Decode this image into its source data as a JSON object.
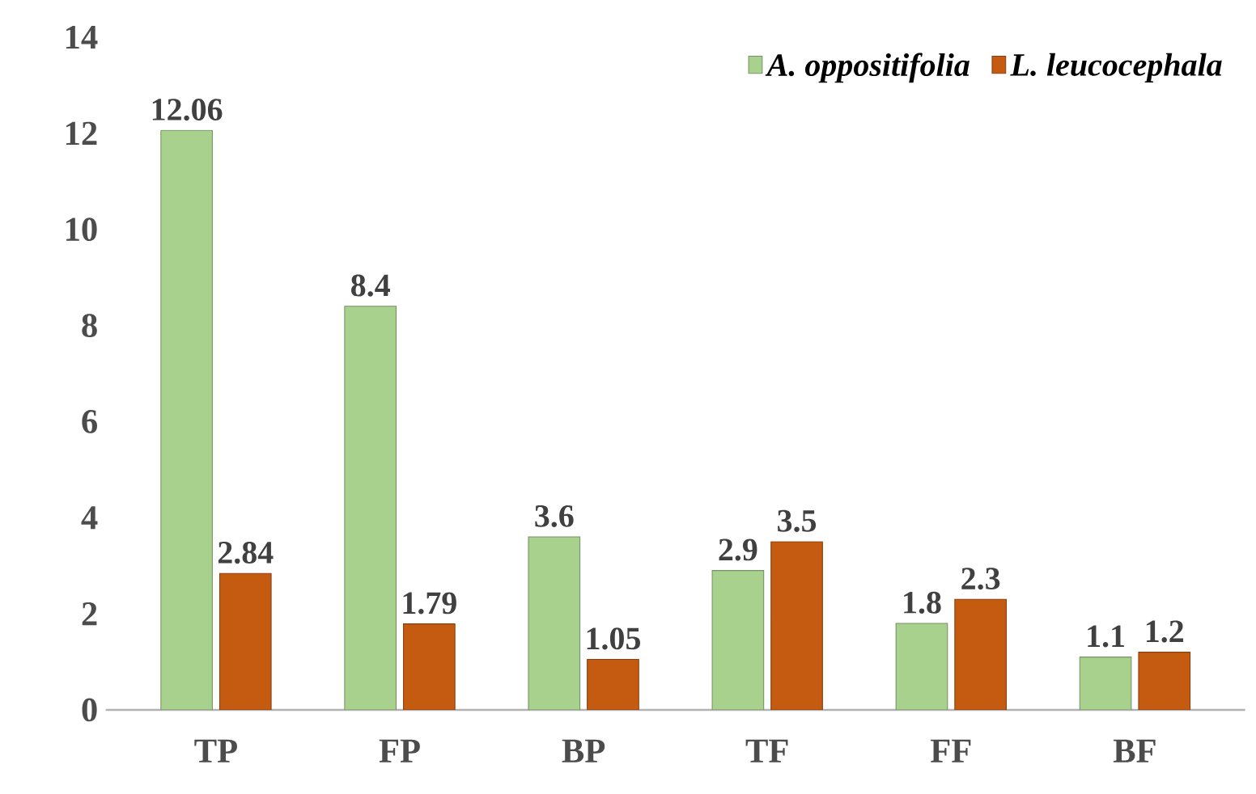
{
  "chart_data": {
    "type": "bar",
    "categories": [
      "TP",
      "FP",
      "BP",
      "TF",
      "FF",
      "BF"
    ],
    "series": [
      {
        "name": "A. oppositifolia",
        "color": "#a9d18e",
        "values": [
          12.06,
          8.4,
          3.6,
          2.9,
          1.8,
          1.1
        ]
      },
      {
        "name": "L. leucocephala",
        "color": "#c55a11",
        "values": [
          2.84,
          1.79,
          1.05,
          3.5,
          2.3,
          1.2
        ]
      }
    ],
    "ylim": [
      0,
      14
    ],
    "yticks": [
      0,
      2,
      4,
      6,
      8,
      10,
      12,
      14
    ],
    "data_labels": true,
    "legend": "top right",
    "grid": false
  }
}
